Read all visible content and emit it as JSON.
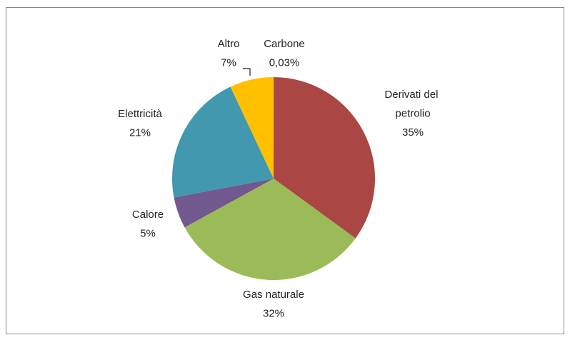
{
  "chart_data": {
    "type": "pie",
    "categories": [
      "Carbone",
      "Derivati del petrolio",
      "Gas naturale",
      "Calore",
      "Elettricità",
      "Altro"
    ],
    "values": [
      0.03,
      35,
      32,
      5,
      21,
      7
    ],
    "value_labels": [
      "0,03%",
      "35%",
      "32%",
      "5%",
      "21%",
      "7%"
    ],
    "colors": [
      "#4572a7",
      "#aa4643",
      "#9bbb59",
      "#71588f",
      "#4198af",
      "#ffc000"
    ]
  }
}
